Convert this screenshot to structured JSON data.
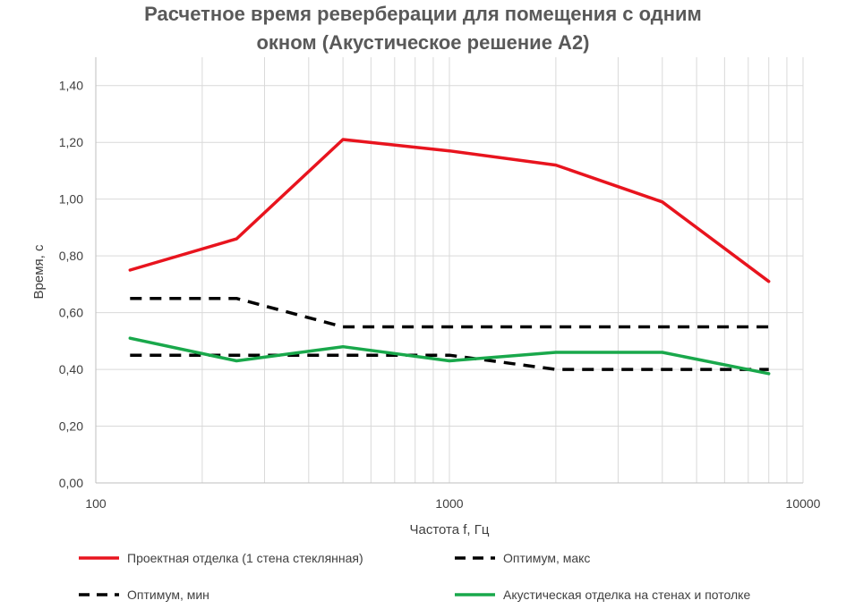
{
  "chart_data": {
    "type": "line",
    "title_lines": [
      "Расчетное время реверберации для помещения с одним",
      "окном (Акустическое решение А2)"
    ],
    "xlabel": "Частота f, Гц",
    "ylabel": "Время, с",
    "xscale": "log",
    "xlim": [
      100,
      10000
    ],
    "ylim": [
      0,
      1.5
    ],
    "x_tick_labels": [
      "100",
      "1000",
      "10000"
    ],
    "y_tick_labels": [
      "0,00",
      "0,20",
      "0,40",
      "0,60",
      "0,80",
      "1,00",
      "1,20",
      "1,40"
    ],
    "x": [
      125,
      250,
      500,
      1000,
      2000,
      4000,
      8000
    ],
    "grid": true,
    "legend_position": "bottom",
    "series": [
      {
        "name": "Проектная отделка (1 стена стеклянная)",
        "values": [
          0.75,
          0.86,
          1.21,
          1.17,
          1.12,
          0.99,
          0.71
        ],
        "color": "#e8141e",
        "style": "solid"
      },
      {
        "name": "Оптимум, макс",
        "values": [
          0.65,
          0.65,
          0.55,
          0.55,
          0.55,
          0.55,
          0.55
        ],
        "color": "#000000",
        "style": "dashed"
      },
      {
        "name": "Оптимум, мин",
        "values": [
          0.45,
          0.45,
          0.45,
          0.45,
          0.4,
          0.4,
          0.4
        ],
        "color": "#000000",
        "style": "dashed"
      },
      {
        "name": "Акустическая отделка на стенах и потолке",
        "values": [
          0.51,
          0.43,
          0.48,
          0.43,
          0.46,
          0.46,
          0.385
        ],
        "color": "#19a84b",
        "style": "solid"
      }
    ]
  }
}
